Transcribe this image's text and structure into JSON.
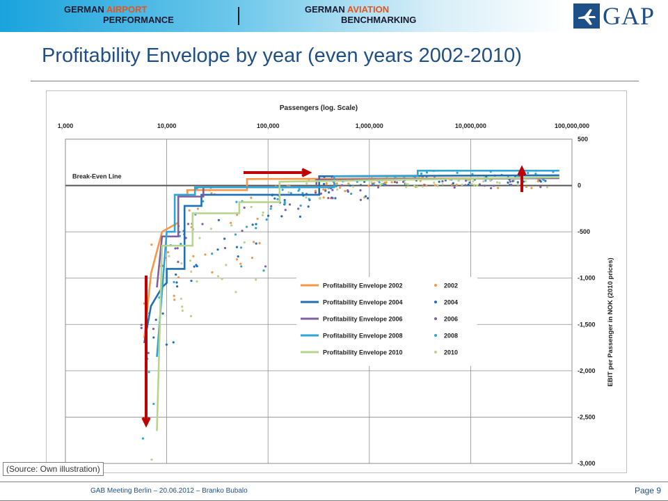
{
  "header": {
    "left_line1_a": "GERMAN ",
    "left_line1_b": "AIRPORT",
    "left_line2": "PERFORMANCE",
    "right_line1_a": "GERMAN ",
    "right_line1_b": "AVIATION",
    "right_line2": "BENCHMARKING",
    "logo_text": "GAP",
    "accent_color": "#e8541c"
  },
  "slide": {
    "title": "Profitability Envelope by year (even years 2002-2010)",
    "source": "(Source: Own illustration)"
  },
  "footer": {
    "text": "GAB Meeting Berlin – 20.06.2012 – Branko Bubalo",
    "page": "Page 9"
  },
  "chart_data": {
    "type": "line",
    "xlabel": "Passengers (log. Scale)",
    "ylabel": "EBIT per Passenger in NOK (2010 prices)",
    "x_scale": "log",
    "xlim": [
      1000,
      100000000
    ],
    "ylim": [
      -3000,
      500
    ],
    "x_ticks": [
      {
        "value": 1000,
        "label": "1,000"
      },
      {
        "value": 10000,
        "label": "10,000"
      },
      {
        "value": 100000,
        "label": "100,000"
      },
      {
        "value": 1000000,
        "label": "1,000,000"
      },
      {
        "value": 10000000,
        "label": "10,000,000"
      },
      {
        "value": 100000000,
        "label": "100,000,000"
      }
    ],
    "y_ticks": [
      {
        "value": 500,
        "label": "500"
      },
      {
        "value": 0,
        "label": "0"
      },
      {
        "value": -500,
        "label": "-500"
      },
      {
        "value": -1000,
        "label": "-1,000"
      },
      {
        "value": -1500,
        "label": "-1,500"
      },
      {
        "value": -2000,
        "label": "-2,000"
      },
      {
        "value": -2500,
        "label": "-2,500"
      },
      {
        "value": -3000,
        "label": "-3,000"
      }
    ],
    "x_axis_position": "top",
    "y_axis_position": "right",
    "grid": true,
    "legend_position": "center-right",
    "annotation": "Break-Even Line",
    "series": [
      {
        "name": "Profitability Envelope 2002",
        "color": "#f79646",
        "x": [
          6000,
          7000,
          9000,
          13000,
          13000,
          16000,
          16000,
          62000,
          62000,
          75000000
        ],
        "y": [
          -1650,
          -950,
          -500,
          -400,
          -100,
          -100,
          -50,
          -50,
          70,
          80
        ]
      },
      {
        "name": "Profitability Envelope 2004",
        "color": "#1f6fb5",
        "x": [
          6000,
          7000,
          9000,
          10000,
          10000,
          15000,
          15000,
          22000,
          22000,
          320000,
          320000,
          75000000
        ],
        "y": [
          -1700,
          -1300,
          -1100,
          -1050,
          -900,
          -900,
          -220,
          -220,
          -100,
          -100,
          100,
          110
        ]
      },
      {
        "name": "Profitability Envelope 2006",
        "color": "#7f5fa0",
        "x": [
          8000,
          9000,
          9000,
          13000,
          13000,
          23000,
          23000,
          300000,
          300000,
          75000000
        ],
        "y": [
          -1100,
          -550,
          -550,
          -550,
          -120,
          -120,
          -20,
          -20,
          60,
          80
        ]
      },
      {
        "name": "Profitability Envelope 2008",
        "color": "#2fa4d7",
        "x": [
          8000,
          10000,
          10000,
          12000,
          12000,
          19000,
          19000,
          450000,
          450000,
          3000000,
          3000000,
          75000000
        ],
        "y": [
          -1850,
          -500,
          -500,
          -500,
          -100,
          -100,
          -20,
          -20,
          100,
          100,
          160,
          160
        ]
      },
      {
        "name": "Profitability Envelope 2010",
        "color": "#b7d48d",
        "x": [
          8000,
          9000,
          9000,
          18000,
          18000,
          52000,
          52000,
          130000,
          130000,
          75000000
        ],
        "y": [
          -2650,
          -650,
          -650,
          -650,
          -300,
          -300,
          -180,
          -180,
          40,
          90
        ]
      },
      {
        "name": "2002",
        "color": "#f79646",
        "marker": "dot"
      },
      {
        "name": "2004",
        "color": "#1f6fb5",
        "marker": "dot"
      },
      {
        "name": "2006",
        "color": "#7f5fa0",
        "marker": "dot"
      },
      {
        "name": "2008",
        "color": "#2fa4d7",
        "marker": "dot"
      },
      {
        "name": "2010",
        "color": "#b7d48d",
        "marker": "dot"
      }
    ]
  }
}
